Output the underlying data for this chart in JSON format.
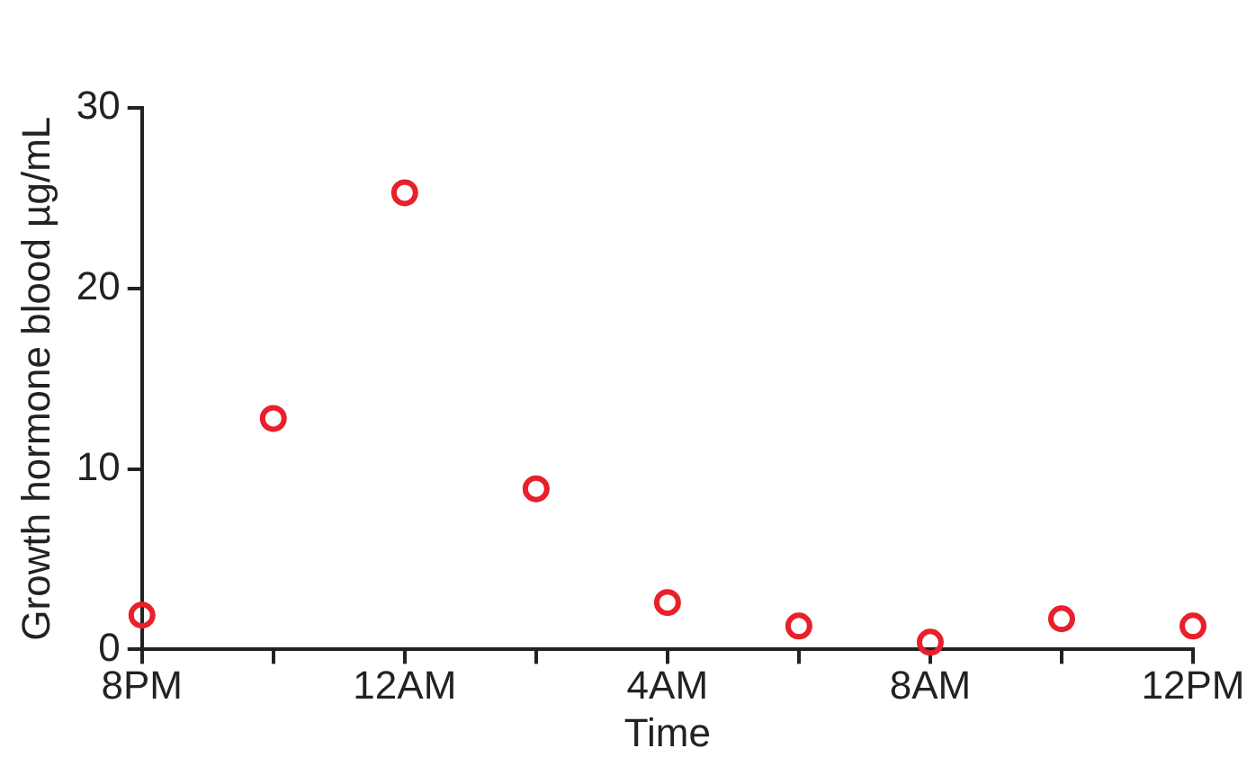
{
  "chart_data": {
    "type": "scatter",
    "xlabel": "Time",
    "ylabel": "Growth hormone blood µg/mL",
    "categories": [
      "8PM",
      null,
      "12AM",
      null,
      "4AM",
      null,
      "8AM",
      null,
      "12PM"
    ],
    "series": [
      {
        "color": "#e8202a",
        "values": [
          1.9,
          12.8,
          25.3,
          8.9,
          2.6,
          1.3,
          0.4,
          1.7,
          1.3
        ]
      }
    ],
    "ylim": [
      0,
      30
    ],
    "yticks": [
      0,
      10,
      20,
      30
    ],
    "grid": false,
    "legend": false,
    "marker": "circle"
  }
}
